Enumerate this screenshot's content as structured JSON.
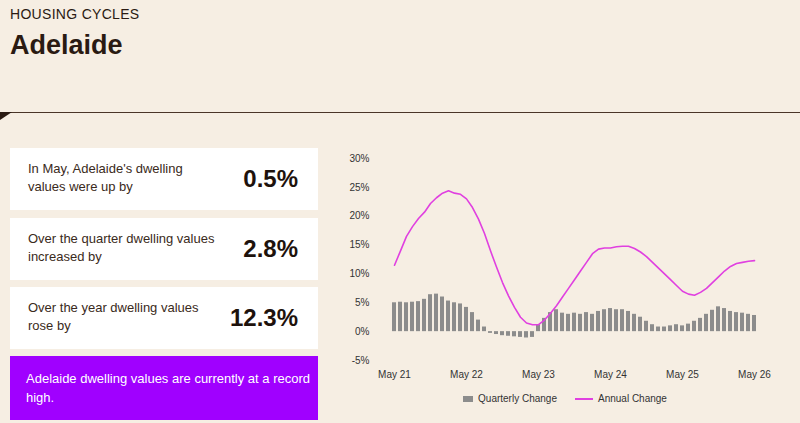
{
  "header": {
    "kicker": "HOUSING CYCLES",
    "title": "Adelaide"
  },
  "stats": [
    {
      "label": "In May, Adelaide's dwelling values were up by",
      "value": "0.5%"
    },
    {
      "label": "Over the quarter dwelling values increased by",
      "value": "2.8%"
    },
    {
      "label": "Over the year dwelling values rose by",
      "value": "12.3%"
    }
  ],
  "note": "Adelaide dwelling values are currently at a record high.",
  "chart_data": {
    "type": "bar",
    "x": [
      "2021-05",
      "2021-06",
      "2021-07",
      "2021-08",
      "2021-09",
      "2021-10",
      "2021-11",
      "2021-12",
      "2022-01",
      "2022-02",
      "2022-03",
      "2022-04",
      "2022-05",
      "2022-06",
      "2022-07",
      "2022-08",
      "2022-09",
      "2022-10",
      "2022-11",
      "2022-12",
      "2023-01",
      "2023-02",
      "2023-03",
      "2023-04",
      "2023-05",
      "2023-06",
      "2023-07",
      "2023-08",
      "2023-09",
      "2023-10",
      "2023-11",
      "2023-12",
      "2024-01",
      "2024-02",
      "2024-03",
      "2024-04",
      "2024-05",
      "2024-06",
      "2024-07",
      "2024-08",
      "2024-09",
      "2024-10",
      "2024-11",
      "2024-12",
      "2025-01",
      "2025-02",
      "2025-03",
      "2025-04",
      "2025-05",
      "2025-06",
      "2025-07",
      "2025-08",
      "2025-09",
      "2025-10",
      "2025-11",
      "2025-12",
      "2026-01",
      "2026-02",
      "2026-03",
      "2026-04",
      "2026-05"
    ],
    "series": [
      {
        "name": "Quarterly Change",
        "type": "bar",
        "color": "#8c8c8c",
        "values": [
          5.0,
          5.1,
          5.0,
          5.1,
          5.2,
          5.6,
          6.4,
          6.5,
          6.0,
          5.3,
          5.0,
          4.8,
          4.2,
          3.3,
          2.0,
          0.8,
          -0.3,
          -0.5,
          -0.7,
          -0.8,
          -0.9,
          -1.0,
          -1.1,
          -1.0,
          1.2,
          2.3,
          3.3,
          3.8,
          3.2,
          3.0,
          3.2,
          3.0,
          3.3,
          3.0,
          3.5,
          3.8,
          4.0,
          3.8,
          3.8,
          3.5,
          3.0,
          2.5,
          1.8,
          1.2,
          0.8,
          0.8,
          1.0,
          1.2,
          1.0,
          1.3,
          1.8,
          2.3,
          3.0,
          3.7,
          4.3,
          4.0,
          3.5,
          3.3,
          3.2,
          3.0,
          2.8
        ]
      },
      {
        "name": "Annual Change",
        "type": "line",
        "color": "#e040e0",
        "values": [
          11.5,
          14.0,
          16.5,
          18.2,
          19.6,
          20.7,
          22.2,
          23.2,
          24.0,
          24.4,
          24.0,
          23.8,
          23.0,
          21.5,
          19.5,
          17.0,
          14.0,
          11.2,
          8.5,
          6.2,
          4.2,
          2.5,
          1.5,
          1.2,
          1.2,
          2.0,
          3.2,
          4.5,
          6.0,
          7.5,
          9.0,
          10.5,
          12.0,
          13.5,
          14.3,
          14.5,
          14.5,
          14.7,
          14.8,
          14.8,
          14.4,
          13.8,
          13.0,
          12.0,
          11.0,
          10.0,
          9.0,
          8.0,
          7.0,
          6.5,
          6.3,
          6.8,
          7.5,
          8.5,
          9.5,
          10.5,
          11.3,
          11.8,
          12.0,
          12.2,
          12.3
        ]
      }
    ],
    "xticks": [
      {
        "value": "2021-05",
        "label": "May 21"
      },
      {
        "value": "2022-05",
        "label": "May 22"
      },
      {
        "value": "2023-05",
        "label": "May 23"
      },
      {
        "value": "2024-05",
        "label": "May 24"
      },
      {
        "value": "2025-05",
        "label": "May 25"
      },
      {
        "value": "2026-05",
        "label": "May 26"
      }
    ],
    "ylim": [
      -5,
      30
    ],
    "yticks": [
      {
        "value": -5,
        "label": "-5%"
      },
      {
        "value": 0,
        "label": "0%"
      },
      {
        "value": 5,
        "label": "5%"
      },
      {
        "value": 10,
        "label": "10%"
      },
      {
        "value": 15,
        "label": "15%"
      },
      {
        "value": 20,
        "label": "20%"
      },
      {
        "value": 25,
        "label": "25%"
      },
      {
        "value": 30,
        "label": "30%"
      }
    ],
    "grid": false,
    "legend": "bottom"
  }
}
